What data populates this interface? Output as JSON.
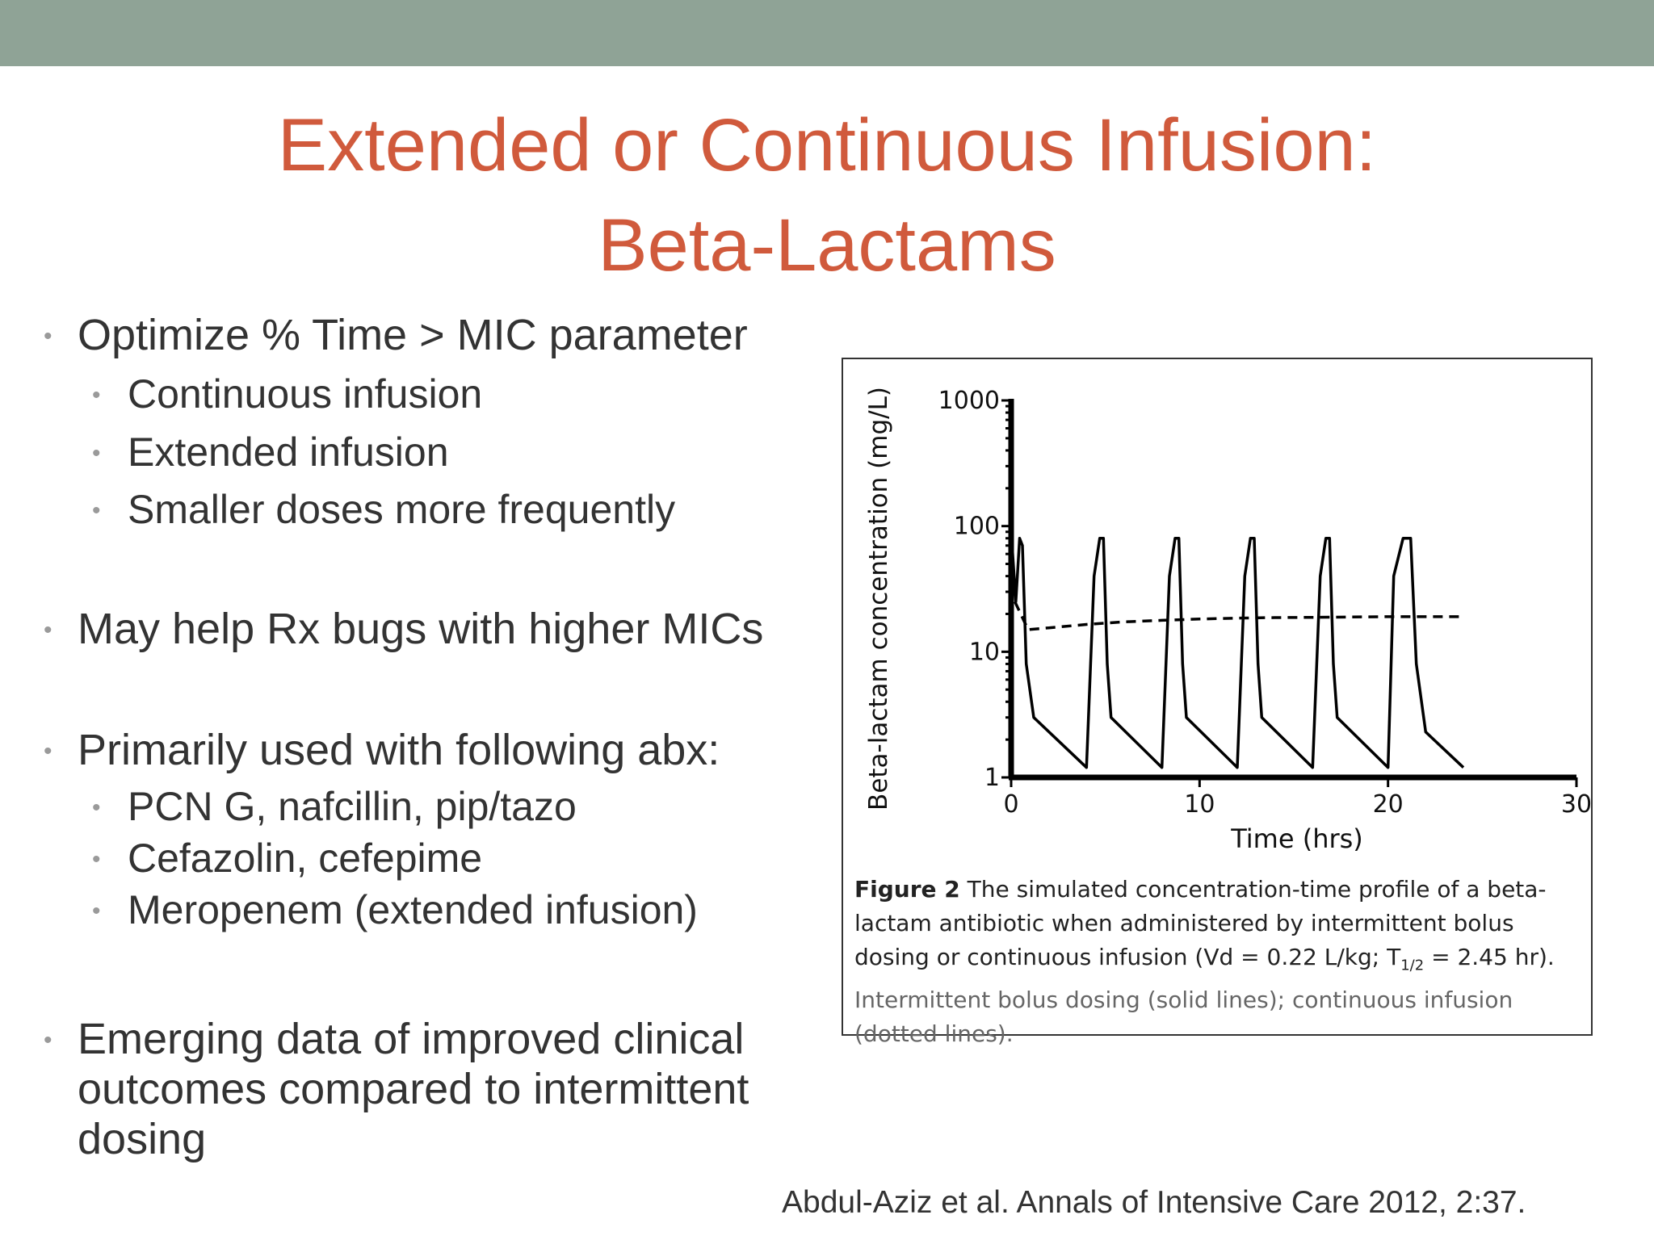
{
  "slide": {
    "title_line1": "Extended or Continuous Infusion:",
    "title_line2": "Beta-Lactams",
    "colors": {
      "top_band": "#8fa396",
      "title": "#d05a3c",
      "text": "#333333",
      "bullet_dot": "#9a9a9a"
    },
    "bullets": [
      {
        "text": "Optimize % Time > MIC parameter",
        "sub": [
          "Continuous infusion",
          "Extended infusion",
          "Smaller doses more frequently"
        ]
      },
      {
        "text": "May help Rx bugs with higher MICs",
        "sub": []
      },
      {
        "text": "Primarily used with following abx:",
        "sub": [
          "PCN G, nafcillin, pip/tazo",
          "Cefazolin, cefepime",
          "Meropenem (extended infusion)"
        ]
      },
      {
        "text": "Emerging data of improved clinical",
        "text_line2": "outcomes compared to intermittent",
        "text_line3": "dosing",
        "sub": []
      }
    ],
    "citation": "Abdul-Aziz et al. Annals of Intensive Care 2012, 2:37."
  },
  "figure": {
    "caption_label": "Figure 2",
    "caption_bold": "The simulated concentration-time profile of a beta-lactam antibiotic when administered by intermittent bolus dosing or continuous infusion (Vd = 0.22 L/kg; T",
    "caption_sub": "1/2",
    "caption_bold_end": " = 2.45 hr).",
    "caption_light": "Intermittent bolus dosing (solid lines); continuous infusion (dotted lines)."
  },
  "chart_data": {
    "type": "line",
    "xlabel": "Time (hrs)",
    "ylabel": "Beta-lactam concentration (mg/L)",
    "xlim": [
      0,
      30
    ],
    "ylim": [
      1,
      1000
    ],
    "yscale": "log",
    "xticks": [
      0,
      10,
      20,
      30
    ],
    "xtick_labels": [
      "0",
      "10",
      "20",
      "30"
    ],
    "yticks": [
      1,
      10,
      100,
      1000
    ],
    "ytick_labels": [
      "1",
      "10",
      "100",
      "1000"
    ],
    "series": [
      {
        "style": "solid",
        "points": [
          [
            0,
            1000
          ],
          [
            0.05,
            70
          ],
          [
            0.25,
            25
          ],
          [
            0.45,
            80
          ],
          [
            0.6,
            70
          ],
          [
            0.8,
            8
          ],
          [
            1.2,
            3
          ],
          [
            4,
            1.2
          ],
          [
            4.4,
            40
          ],
          [
            4.7,
            80
          ],
          [
            4.9,
            80
          ],
          [
            5.1,
            8
          ],
          [
            5.3,
            3
          ],
          [
            8,
            1.2
          ],
          [
            8.4,
            40
          ],
          [
            8.7,
            80
          ],
          [
            8.9,
            80
          ],
          [
            9.1,
            8
          ],
          [
            9.3,
            3
          ],
          [
            12,
            1.2
          ],
          [
            12.4,
            40
          ],
          [
            12.7,
            80
          ],
          [
            12.9,
            80
          ],
          [
            13.1,
            8
          ],
          [
            13.3,
            3
          ],
          [
            16,
            1.2
          ],
          [
            16.4,
            40
          ],
          [
            16.7,
            80
          ],
          [
            16.9,
            80
          ],
          [
            17.1,
            8
          ],
          [
            17.3,
            3
          ],
          [
            20,
            1.2
          ],
          [
            20.3,
            40
          ],
          [
            20.8,
            80
          ],
          [
            21.2,
            80
          ],
          [
            21.5,
            8
          ],
          [
            22,
            2.3
          ],
          [
            24,
            1.2
          ]
        ]
      },
      {
        "style": "dashed",
        "points": [
          [
            0.2,
            25
          ],
          [
            0.9,
            15
          ],
          [
            2,
            15.5
          ],
          [
            4,
            16.5
          ],
          [
            6,
            17.3
          ],
          [
            8,
            17.8
          ],
          [
            10,
            18.2
          ],
          [
            12,
            18.5
          ],
          [
            14,
            18.7
          ],
          [
            16,
            18.8
          ],
          [
            18,
            18.9
          ],
          [
            20,
            19
          ],
          [
            22,
            19
          ],
          [
            24,
            19
          ]
        ]
      }
    ]
  }
}
